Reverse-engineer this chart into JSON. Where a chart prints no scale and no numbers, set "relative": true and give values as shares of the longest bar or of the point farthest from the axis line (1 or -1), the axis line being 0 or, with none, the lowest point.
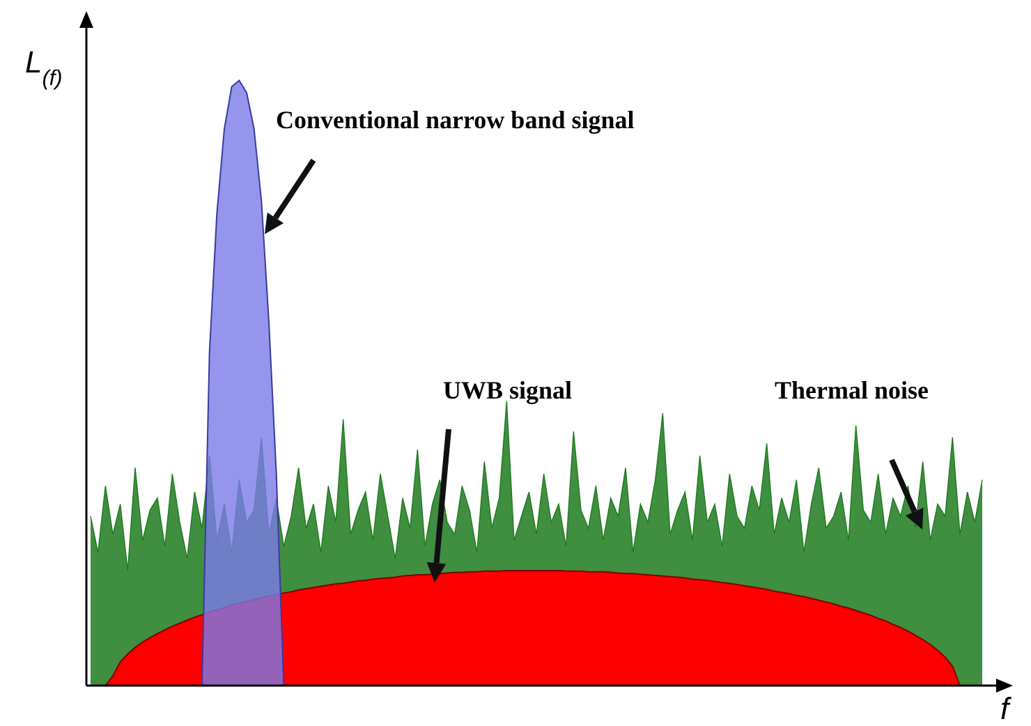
{
  "chart_data": {
    "type": "area",
    "relative": true,
    "xlabel": "f",
    "ylabel": "L$_{(f)}$",
    "categories": [
      null,
      null,
      null,
      null,
      null,
      null,
      null,
      null,
      null,
      null,
      null,
      null,
      null,
      null,
      null,
      null,
      null,
      null,
      null,
      null,
      null,
      null,
      null,
      null,
      null,
      null,
      null,
      null,
      null,
      null,
      null,
      null,
      null,
      null,
      null,
      null,
      null,
      null,
      null,
      null,
      null,
      null,
      null,
      null,
      null,
      null,
      null,
      null,
      null,
      null,
      null,
      null,
      null,
      null,
      null,
      null,
      null,
      null,
      null,
      null,
      null,
      null,
      null,
      null,
      null,
      null,
      null,
      null,
      null,
      null,
      null,
      null,
      null,
      null,
      null,
      null,
      null,
      null,
      null,
      null,
      null,
      null,
      null,
      null,
      null,
      null,
      null,
      null,
      null,
      null,
      null,
      null,
      null,
      null,
      null,
      null,
      null,
      null,
      null,
      null,
      null,
      null,
      null,
      null,
      null,
      null,
      null,
      null,
      null,
      null,
      null,
      null,
      null,
      null,
      null,
      null,
      null,
      null,
      null,
      null,
      null
    ],
    "series": [
      {
        "name": "Thermal noise",
        "color": "#1f7a1f",
        "values": [
          0.28,
          0.22,
          0.33,
          0.25,
          0.3,
          0.19,
          0.36,
          0.24,
          0.29,
          0.31,
          0.23,
          0.35,
          0.27,
          0.21,
          0.32,
          0.26,
          0.38,
          0.24,
          0.3,
          0.22,
          0.34,
          0.27,
          0.29,
          0.41,
          0.25,
          0.31,
          0.23,
          0.28,
          0.36,
          0.26,
          0.3,
          0.22,
          0.33,
          0.27,
          0.44,
          0.25,
          0.29,
          0.32,
          0.24,
          0.35,
          0.28,
          0.21,
          0.31,
          0.26,
          0.39,
          0.23,
          0.3,
          0.34,
          0.27,
          0.25,
          0.33,
          0.29,
          0.22,
          0.37,
          0.26,
          0.31,
          0.47,
          0.24,
          0.28,
          0.32,
          0.25,
          0.35,
          0.27,
          0.3,
          0.23,
          0.42,
          0.29,
          0.26,
          0.33,
          0.24,
          0.31,
          0.28,
          0.36,
          0.22,
          0.3,
          0.27,
          0.34,
          0.45,
          0.25,
          0.29,
          0.32,
          0.24,
          0.38,
          0.27,
          0.3,
          0.23,
          0.35,
          0.28,
          0.26,
          0.33,
          0.29,
          0.4,
          0.25,
          0.31,
          0.27,
          0.34,
          0.22,
          0.3,
          0.36,
          0.26,
          0.28,
          0.32,
          0.24,
          0.43,
          0.29,
          0.27,
          0.35,
          0.25,
          0.31,
          0.28,
          0.33,
          0.26,
          0.37,
          0.24,
          0.3,
          0.28,
          0.41,
          0.25,
          0.32,
          0.27,
          0.34
        ]
      },
      {
        "name": "UWB signal",
        "color": "#ff0000",
        "values": [
          null,
          null,
          0,
          0.016,
          0.039,
          0.052,
          0.063,
          0.072,
          0.079,
          0.086,
          0.092,
          0.098,
          0.103,
          0.108,
          0.113,
          0.117,
          0.122,
          0.125,
          0.129,
          0.133,
          0.136,
          0.139,
          0.142,
          0.145,
          0.148,
          0.15,
          0.153,
          0.155,
          0.158,
          0.16,
          0.162,
          0.164,
          0.166,
          0.168,
          0.169,
          0.171,
          0.173,
          0.174,
          0.176,
          0.177,
          0.178,
          0.179,
          0.181,
          0.182,
          0.183,
          0.183,
          0.184,
          0.185,
          0.186,
          0.187,
          0.187,
          0.188,
          0.188,
          0.189,
          0.189,
          0.189,
          0.19,
          0.19,
          0.19,
          0.19,
          0.19,
          0.19,
          0.19,
          0.19,
          0.189,
          0.189,
          0.189,
          0.188,
          0.188,
          0.188,
          0.187,
          0.186,
          0.185,
          0.185,
          0.184,
          0.183,
          0.182,
          0.181,
          0.18,
          0.179,
          0.178,
          0.176,
          0.175,
          0.174,
          0.172,
          0.17,
          0.169,
          0.167,
          0.165,
          0.163,
          0.161,
          0.159,
          0.156,
          0.154,
          0.152,
          0.149,
          0.147,
          0.144,
          0.141,
          0.138,
          0.135,
          0.131,
          0.128,
          0.124,
          0.12,
          0.116,
          0.111,
          0.107,
          0.101,
          0.096,
          0.09,
          0.083,
          0.076,
          0.068,
          0.058,
          0.047,
          0.032,
          0,
          null,
          null,
          null
        ]
      },
      {
        "name": "Conventional narrow band signal",
        "color": "#7b7be8",
        "values": [
          null,
          null,
          null,
          null,
          null,
          null,
          null,
          null,
          null,
          null,
          null,
          null,
          null,
          null,
          null,
          0,
          0.55,
          0.78,
          0.92,
          0.99,
          1,
          0.98,
          0.92,
          0.8,
          0.6,
          0.35,
          0,
          null,
          null,
          null,
          null,
          null,
          null,
          null,
          null,
          null,
          null,
          null,
          null,
          null,
          null,
          null,
          null,
          null,
          null,
          null,
          null,
          null,
          null,
          null,
          null,
          null,
          null,
          null,
          null,
          null,
          null,
          null,
          null,
          null,
          null,
          null,
          null,
          null,
          null,
          null,
          null,
          null,
          null,
          null,
          null,
          null,
          null,
          null,
          null,
          null,
          null,
          null,
          null,
          null,
          null,
          null,
          null,
          null,
          null,
          null,
          null,
          null,
          null,
          null,
          null,
          null,
          null,
          null,
          null,
          null,
          null,
          null,
          null,
          null,
          null,
          null,
          null,
          null,
          null,
          null,
          null,
          null,
          null,
          null,
          null,
          null,
          null,
          null,
          null,
          null,
          null,
          null,
          null,
          null,
          null
        ]
      }
    ]
  }
}
